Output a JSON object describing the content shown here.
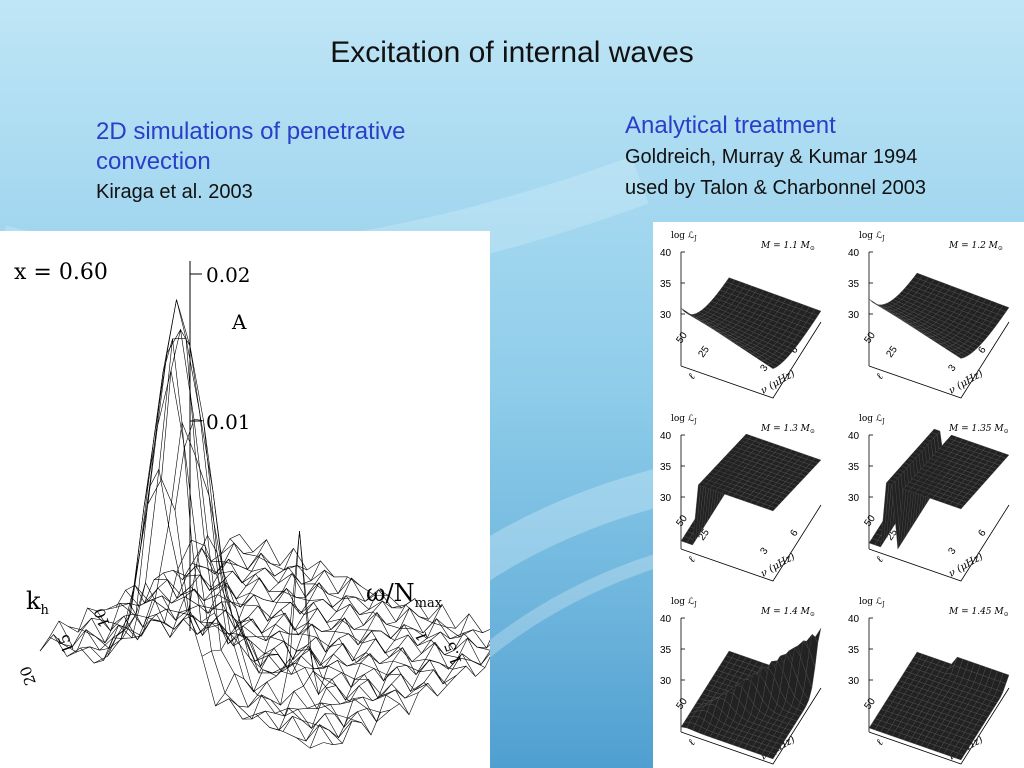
{
  "slide": {
    "title": "Excitation of internal waves",
    "left": {
      "heading": "2D simulations of penetrative convection",
      "citation": "Kiraga et al. 2003",
      "figure": {
        "x_label": "x  =  0.60",
        "z_tick_high": "0.02",
        "z_tick_low": "0.01",
        "z_label": "A",
        "kh_label": "k",
        "kh_sub": "h",
        "omega_label": "ω/N",
        "omega_sub": "max",
        "kh_ticks": [
          "20",
          "15",
          "10"
        ],
        "omega_ticks": [
          "1",
          "1.5"
        ]
      }
    },
    "right": {
      "heading": "Analytical treatment",
      "citation_1": "Goldreich, Murray & Kumar 1994",
      "citation_2": "used by Talon & Charbonnel 2003",
      "figure": {
        "z_axis_label": "log ℒ",
        "z_axis_sub": "J",
        "y_ticks": [
          "40",
          "35",
          "30"
        ],
        "l_ticks": [
          "50",
          "25"
        ],
        "l_label": "ℓ",
        "nu_ticks": [
          "3",
          "6"
        ],
        "nu_label": "ν (μHz)",
        "panels": [
          {
            "mass_label": "M = 1.1 M",
            "sun_sub": "⊙"
          },
          {
            "mass_label": "M = 1.2 M",
            "sun_sub": "⊙"
          },
          {
            "mass_label": "M = 1.3 M",
            "sun_sub": "⊙"
          },
          {
            "mass_label": "M = 1.35 M",
            "sun_sub": "⊙"
          },
          {
            "mass_label": "M = 1.4 M",
            "sun_sub": "⊙"
          },
          {
            "mass_label": "M = 1.45 M",
            "sun_sub": "⊙"
          }
        ]
      }
    }
  }
}
